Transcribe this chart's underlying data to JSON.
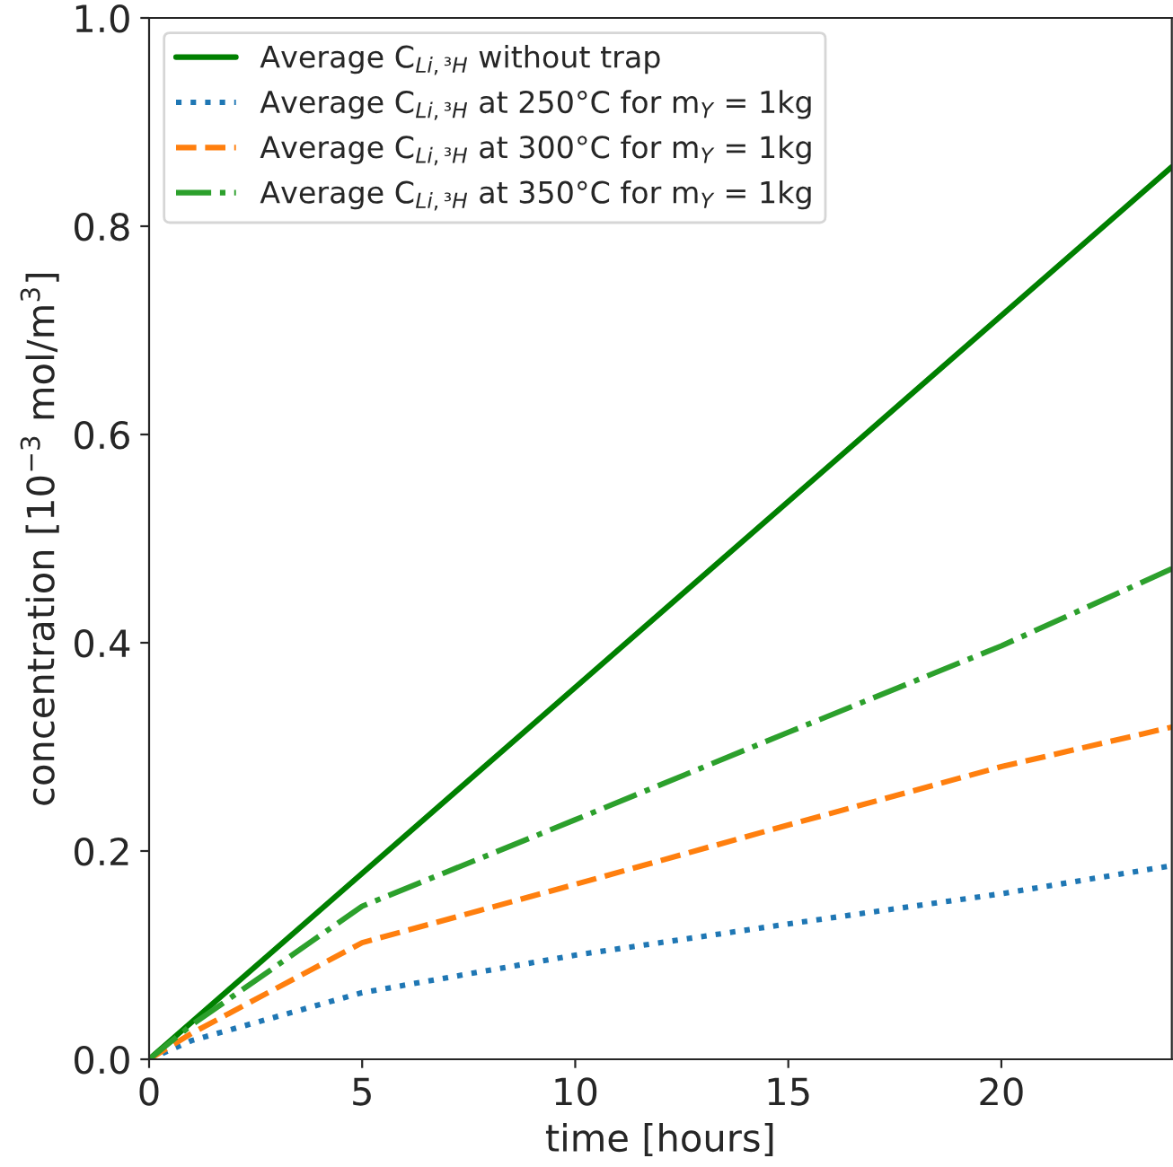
{
  "chart_data": {
    "type": "line",
    "xlabel": "time [hours]",
    "ylabel": "concentration [10$^{−3}$ mol/m$^{3}$]",
    "xlim": [
      0,
      24
    ],
    "ylim": [
      0,
      1.0
    ],
    "xticks": [
      0,
      5,
      10,
      15,
      20
    ],
    "yticks": [
      {
        "value": 0,
        "label": "0.0"
      },
      0.2,
      0.4,
      0.6,
      0.8,
      {
        "value": 1,
        "label": "1.0"
      }
    ],
    "legend": "top left",
    "grid": false,
    "series": [
      {
        "name": "Average C$_{Li,³H}$ without trap",
        "color": "#008000",
        "line_style": "solid",
        "x": [
          0,
          24
        ],
        "values": [
          0,
          0.857
        ]
      },
      {
        "name": "Average C$_{Li,³H}$ at 250°C for m$_{Y}$ = 1kg",
        "color": "#1f77b4",
        "line_style": "dotted",
        "x": [
          0,
          1,
          5,
          10,
          15,
          20,
          24
        ],
        "values": [
          0,
          0.018,
          0.064,
          0.1,
          0.13,
          0.159,
          0.186
        ]
      },
      {
        "name": "Average C$_{Li,³H}$ at 300°C for m$_{Y}$ = 1kg",
        "color": "#ff7f0e",
        "line_style": "dashed",
        "x": [
          0,
          1,
          5,
          10,
          15,
          20,
          24
        ],
        "values": [
          0,
          0.025,
          0.112,
          0.168,
          0.225,
          0.281,
          0.319
        ]
      },
      {
        "name": "Average C$_{Li,³H}$ at 350°C for m$_{Y}$ = 1kg",
        "color": "#2ca02c",
        "line_style": "dashdot",
        "x": [
          0,
          1,
          5,
          10,
          15,
          20,
          24
        ],
        "values": [
          0,
          0.033,
          0.147,
          0.23,
          0.314,
          0.397,
          0.471
        ]
      }
    ]
  }
}
